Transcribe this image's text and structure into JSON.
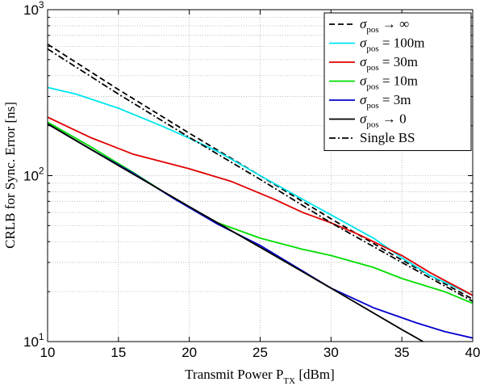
{
  "chart_data": {
    "type": "line",
    "title": "",
    "xlabel": "Transmit Power P",
    "xlabel_sub": "TX",
    "xlabel_unit": " [dBm]",
    "ylabel": "CRLB for Sync. Error [ns]",
    "xlim": [
      10,
      40
    ],
    "ylim": [
      10,
      1000
    ],
    "yscale": "log",
    "grid": true,
    "legend_position": "top-right",
    "x_ticks": [
      10,
      15,
      20,
      25,
      30,
      35,
      40
    ],
    "y_ticks": [
      {
        "base": "10",
        "exp": "1"
      },
      {
        "base": "10",
        "exp": "2"
      },
      {
        "base": "10",
        "exp": "3"
      }
    ],
    "series": [
      {
        "name": "σ_pos → ∞",
        "legend": {
          "var": "σ",
          "sub": "pos",
          "rel": " → ∞"
        },
        "color": "#000000",
        "dash": "dashed",
        "x": [
          10,
          15,
          20,
          25,
          30,
          35,
          40
        ],
        "y": [
          620,
          330,
          180,
          100,
          55,
          31,
          18
        ]
      },
      {
        "name": "σ_pos = 100m",
        "legend": {
          "var": "σ",
          "sub": "pos",
          "rel": " = 100m"
        },
        "color": "#00e5ee",
        "dash": "solid",
        "x": [
          10,
          12,
          15,
          18,
          20,
          22,
          25,
          28,
          30,
          33,
          35,
          37,
          40
        ],
        "y": [
          340,
          310,
          255,
          200,
          168,
          140,
          100,
          72,
          58,
          42,
          32,
          25,
          19
        ]
      },
      {
        "name": "σ_pos = 30m",
        "legend": {
          "var": "σ",
          "sub": "pos",
          "rel": " = 30m"
        },
        "color": "#e00000",
        "dash": "solid",
        "x": [
          10,
          13,
          16,
          20,
          23,
          26,
          28,
          30,
          32,
          35,
          37,
          40
        ],
        "y": [
          225,
          170,
          135,
          110,
          92,
          72,
          60,
          52,
          44,
          33,
          26,
          19
        ]
      },
      {
        "name": "σ_pos = 10m",
        "legend": {
          "var": "σ",
          "sub": "pos",
          "rel": " = 10m"
        },
        "color": "#00dd00",
        "dash": "solid",
        "x": [
          10,
          13,
          16,
          19,
          22,
          25,
          28,
          30,
          33,
          35,
          38,
          40
        ],
        "y": [
          210,
          150,
          105,
          72,
          52,
          42,
          36,
          33,
          28,
          24,
          20,
          17
        ]
      },
      {
        "name": "σ_pos = 3m",
        "legend": {
          "var": "σ",
          "sub": "pos",
          "rel": " = 3m"
        },
        "color": "#0000cc",
        "dash": "solid",
        "x": [
          10,
          13,
          16,
          19,
          22,
          25,
          27,
          30,
          33,
          36,
          38,
          40
        ],
        "y": [
          205,
          145,
          104,
          72,
          51,
          38,
          30,
          21,
          16,
          13,
          11.5,
          10.5
        ]
      },
      {
        "name": "σ_pos → 0",
        "legend": {
          "var": "σ",
          "sub": "pos",
          "rel": " → 0"
        },
        "color": "#000000",
        "dash": "solid",
        "x": [
          10,
          15,
          20,
          25,
          30,
          35,
          36.5
        ],
        "y": [
          205,
          115,
          65,
          37,
          21,
          11.8,
          10
        ]
      },
      {
        "name": "Single BS",
        "legend": {
          "var": "",
          "sub": "",
          "rel": "Single BS"
        },
        "color": "#000000",
        "dash": "dashdot",
        "x": [
          10,
          15,
          20,
          25,
          30,
          35,
          40
        ],
        "y": [
          580,
          310,
          170,
          95,
          52,
          30,
          17.5
        ]
      }
    ]
  }
}
